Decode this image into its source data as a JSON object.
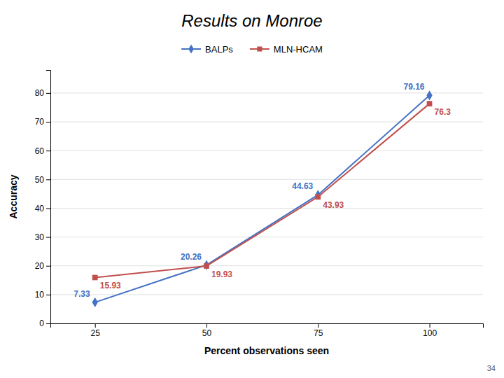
{
  "chart_data": {
    "type": "line",
    "title": "Results on Monroe",
    "xlabel": "Percent observations seen",
    "ylabel": "Accuracy",
    "x": [
      25,
      50,
      75,
      100
    ],
    "series": [
      {
        "name": "BALPs",
        "color": "#4472C4",
        "marker": "diamond",
        "values": [
          7.33,
          20.26,
          44.63,
          79.16
        ]
      },
      {
        "name": "MLN-HCAM",
        "color": "#C0504D",
        "marker": "square",
        "values": [
          15.93,
          19.93,
          43.93,
          76.3
        ]
      }
    ],
    "xlim": [
      15,
      112
    ],
    "xticks": [
      25,
      50,
      75,
      100
    ],
    "ylim": [
      0,
      88
    ],
    "yticks": [
      0,
      10,
      20,
      30,
      40,
      50,
      60,
      70,
      80
    ],
    "grid": "y",
    "legend": "top",
    "data_labels": true,
    "annotations": [
      "34"
    ]
  }
}
